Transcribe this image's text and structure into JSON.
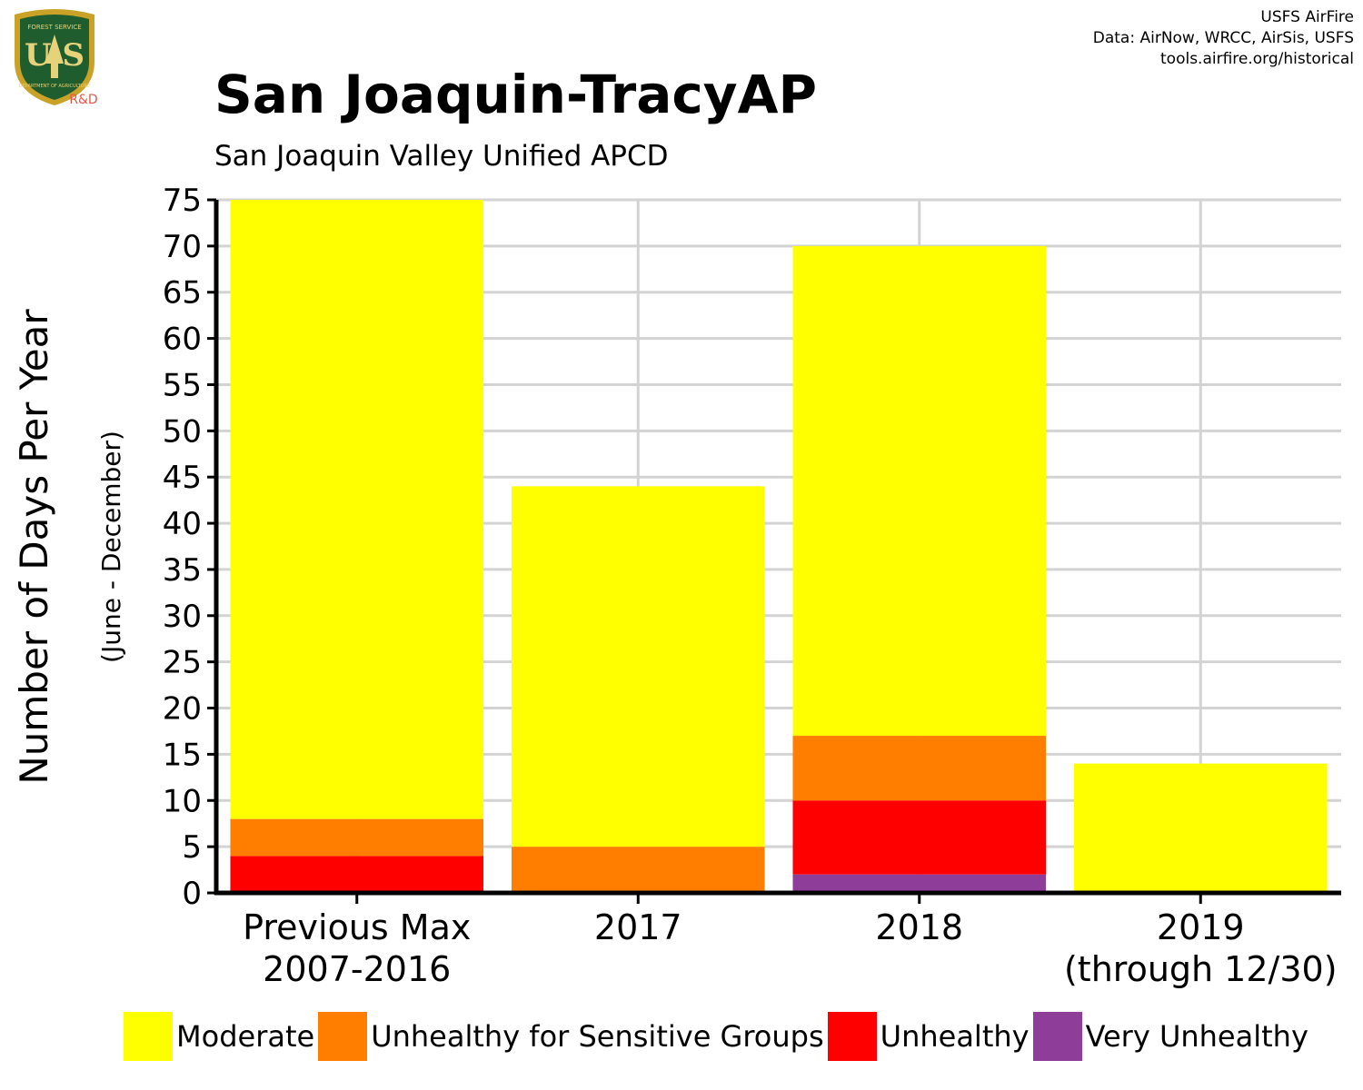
{
  "header": {
    "logo_text": "U S",
    "logo_ring_top": "FOREST SERVICE",
    "logo_ring_bottom": "DEPARTMENT OF AGRICULTURE",
    "logo_rd": "R&D",
    "credits": [
      "USFS AirFire",
      "Data: AirNow, WRCC, AirSis, USFS",
      "tools.airfire.org/historical"
    ]
  },
  "chart_data": {
    "type": "bar",
    "stacked": true,
    "title": "San Joaquin-TracyAP",
    "subtitle": "San Joaquin Valley Unified APCD",
    "ylabel": "Number of Days Per Year",
    "ylabel2": "(June - December)",
    "ylim": [
      0,
      75
    ],
    "yticks": [
      0,
      5,
      10,
      15,
      20,
      25,
      30,
      35,
      40,
      45,
      50,
      55,
      60,
      65,
      70,
      75
    ],
    "grid": true,
    "legend_position": "bottom",
    "categories": [
      [
        "Previous Max",
        "2007-2016"
      ],
      [
        "2017"
      ],
      [
        "2018"
      ],
      [
        "2019",
        "(through 12/30)"
      ]
    ],
    "series": [
      {
        "name": "Very Unhealthy",
        "color": "#8e3e98",
        "values": [
          0,
          0,
          2,
          0
        ]
      },
      {
        "name": "Unhealthy",
        "color": "#ff0000",
        "values": [
          4,
          0,
          8,
          0
        ]
      },
      {
        "name": "Unhealthy for Sensitive Groups",
        "color": "#ff7e00",
        "values": [
          4,
          5,
          7,
          0
        ]
      },
      {
        "name": "Moderate",
        "color": "#ffff00",
        "values": [
          67,
          39,
          53,
          14
        ]
      }
    ]
  },
  "legend": [
    {
      "label": "Moderate",
      "color": "#ffff00"
    },
    {
      "label": "Unhealthy for Sensitive Groups",
      "color": "#ff7e00"
    },
    {
      "label": "Unhealthy",
      "color": "#ff0000"
    },
    {
      "label": "Very Unhealthy",
      "color": "#8e3e98"
    }
  ]
}
